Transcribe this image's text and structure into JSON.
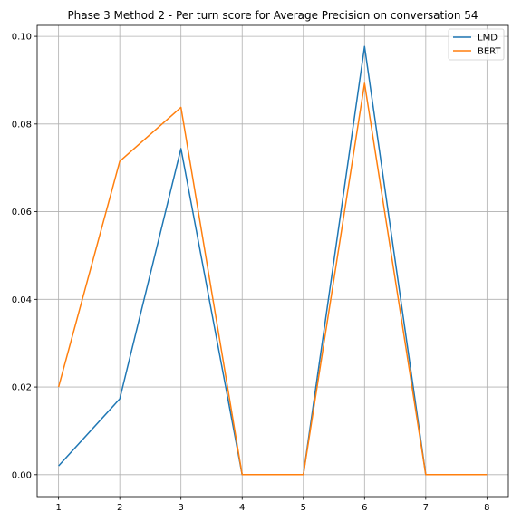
{
  "chart_data": {
    "type": "line",
    "title": "Phase 3 Method 2 - Per turn score for Average Precision on conversation 54",
    "xlabel": "",
    "ylabel": "",
    "x": [
      1,
      2,
      3,
      4,
      5,
      6,
      7,
      8
    ],
    "xticks": [
      "1",
      "2",
      "3",
      "4",
      "5",
      "6",
      "7",
      "8"
    ],
    "yticks": [
      "0.00",
      "0.02",
      "0.04",
      "0.06",
      "0.08",
      "0.10"
    ],
    "xlim": [
      0.65,
      8.35
    ],
    "ylim": [
      -0.005,
      0.1025
    ],
    "grid": true,
    "legend_position": "upper right",
    "series": [
      {
        "name": "LMD",
        "color": "#1f77b4",
        "values": [
          0.002,
          0.0173,
          0.0744,
          0.0,
          0.0,
          0.0977,
          0.0,
          0.0
        ]
      },
      {
        "name": "BERT",
        "color": "#ff7f0e",
        "values": [
          0.02,
          0.0715,
          0.0838,
          0.0,
          0.0,
          0.0893,
          0.0,
          0.0
        ]
      }
    ]
  }
}
